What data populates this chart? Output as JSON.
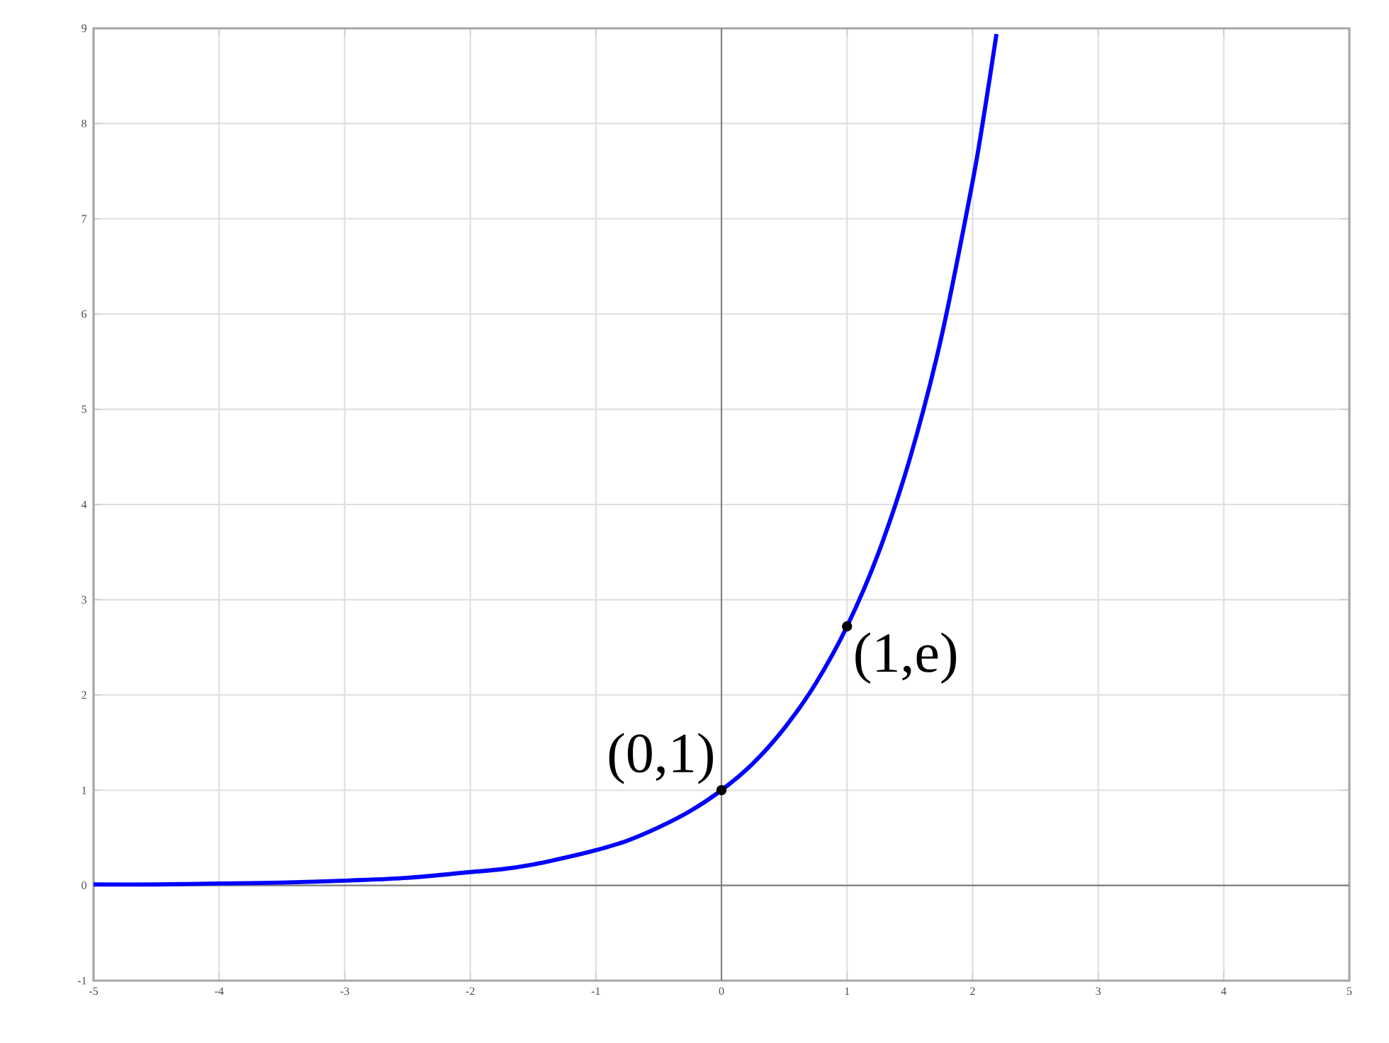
{
  "chart_data": {
    "type": "line",
    "xlim": [
      -5,
      5
    ],
    "ylim": [
      -1,
      9
    ],
    "xticks": [
      -5,
      -4,
      -3,
      -2,
      -1,
      0,
      1,
      2,
      3,
      4,
      5
    ],
    "yticks": [
      -1,
      0,
      1,
      2,
      3,
      4,
      5,
      6,
      7,
      8,
      9
    ],
    "grid": true,
    "series": [
      {
        "color": "#0000ff",
        "x": [
          -5,
          -4.5,
          -4,
          -3.5,
          -3,
          -2.5,
          -2,
          -1.75,
          -1.5,
          -1.25,
          -1,
          -0.75,
          -0.5,
          -0.25,
          0,
          0.25,
          0.5,
          0.75,
          1,
          1.25,
          1.5,
          1.75,
          2,
          2.1,
          2.19
        ],
        "values": [
          0.01,
          0.01,
          0.02,
          0.03,
          0.05,
          0.08,
          0.14,
          0.17,
          0.22,
          0.29,
          0.37,
          0.47,
          0.61,
          0.78,
          1,
          1.28,
          1.65,
          2.12,
          2.72,
          3.49,
          4.48,
          5.75,
          7.39,
          8.17,
          8.94
        ]
      },
      {
        "type": "scatter",
        "color": "#000000",
        "marker": "circle",
        "x": [
          0,
          1
        ],
        "values": [
          1,
          2.72
        ]
      }
    ],
    "annotations": [
      {
        "text": "(0,1)",
        "x": 0,
        "y": 1
      },
      {
        "text": "(1,e)",
        "x": 1,
        "y": 2.72
      }
    ]
  }
}
